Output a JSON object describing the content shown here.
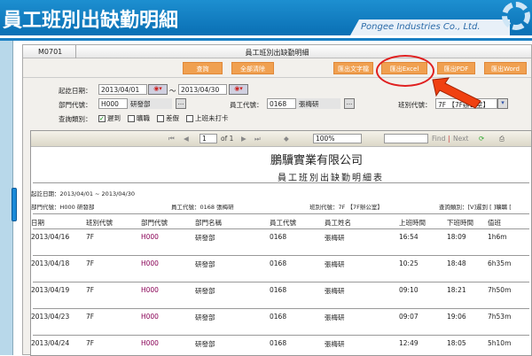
{
  "header": {
    "title": "員工班別出缺勤明細",
    "company": "Pongee Industries Co., Ltd."
  },
  "panel": {
    "tab": "M0701",
    "title": "員工班別出缺勤明細"
  },
  "buttons": {
    "query": "查詢",
    "clear": "全部清除",
    "export_text": "匯出文字檔",
    "export_excel": "匯出Excel",
    "export_pdf": "匯出PDF",
    "export_word": "匯出Word"
  },
  "form": {
    "date_label": "起訖日期：",
    "date_from": "2013/04/01",
    "tilde": "～",
    "date_to": "2013/04/30",
    "dept_label": "部門代號：",
    "dept_code": "H000",
    "dept_name": "研發部",
    "emp_label": "員工代號：",
    "emp_code": "0168",
    "emp_name": "張梅研",
    "shift_label": "班別代號：",
    "shift_value": "7F 【7F辦公室】",
    "type_label": "查詢類別：",
    "types": [
      {
        "label": "遲到",
        "checked": true
      },
      {
        "label": "曠職",
        "checked": false
      },
      {
        "label": "差假",
        "checked": false
      },
      {
        "label": "上班未打卡",
        "checked": false
      }
    ],
    "more": "..."
  },
  "toolbar": {
    "page": "1",
    "of": "of 1",
    "zoom": "100%",
    "find": "Find",
    "sep": "|",
    "next": "Next"
  },
  "report": {
    "company": "鵬驥實業有限公司",
    "title": "員工班別出缺勤明細表",
    "range": "起訖日期：2013/04/01 ~ 2013/04/30",
    "dept": "部門代號：H000 研發部",
    "emp": "員工代號：0168 張梅研",
    "shift": "班別代號：7F 【7F辦公室】",
    "query": "查詢類別：[V]遲到 [  ]曠職 [",
    "columns": [
      "日期",
      "班別代號",
      "部門代號",
      "部門名稱",
      "員工代號",
      "員工姓名",
      "上班時間",
      "下班時間",
      "值班"
    ],
    "rows": [
      [
        "2013/04/16",
        "7F",
        "H000",
        "研發部",
        "0168",
        "張梅研",
        "16:54",
        "18:09",
        "1h6m"
      ],
      [
        "2013/04/18",
        "7F",
        "H000",
        "研發部",
        "0168",
        "張梅研",
        "10:25",
        "18:48",
        "6h35m"
      ],
      [
        "2013/04/19",
        "7F",
        "H000",
        "研發部",
        "0168",
        "張梅研",
        "09:10",
        "18:21",
        "7h50m"
      ],
      [
        "2013/04/23",
        "7F",
        "H000",
        "研發部",
        "0168",
        "張梅研",
        "09:07",
        "19:06",
        "7h53m"
      ],
      [
        "2013/04/24",
        "7F",
        "H000",
        "研發部",
        "0168",
        "張梅研",
        "12:49",
        "18:05",
        "5h10m"
      ]
    ]
  }
}
